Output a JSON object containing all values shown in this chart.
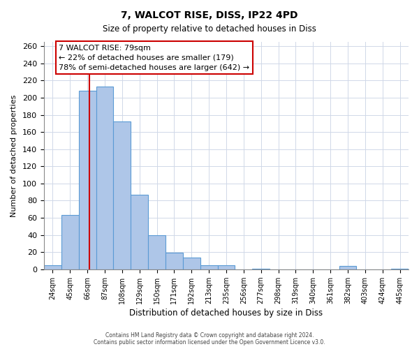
{
  "title": "7, WALCOT RISE, DISS, IP22 4PD",
  "subtitle": "Size of property relative to detached houses in Diss",
  "xlabel": "Distribution of detached houses by size in Diss",
  "ylabel": "Number of detached properties",
  "bar_labels": [
    "24sqm",
    "45sqm",
    "66sqm",
    "87sqm",
    "108sqm",
    "129sqm",
    "150sqm",
    "171sqm",
    "192sqm",
    "213sqm",
    "235sqm",
    "256sqm",
    "277sqm",
    "298sqm",
    "319sqm",
    "340sqm",
    "361sqm",
    "382sqm",
    "403sqm",
    "424sqm",
    "445sqm"
  ],
  "bar_values": [
    5,
    63,
    208,
    213,
    172,
    87,
    40,
    19,
    14,
    5,
    5,
    0,
    1,
    0,
    0,
    0,
    0,
    4,
    0,
    0,
    1
  ],
  "bar_color": "#aec6e8",
  "bar_edgecolor": "#5b9bd5",
  "bar_width": 1.0,
  "vline_color": "#cc0000",
  "annotation_line1": "7 WALCOT RISE: 79sqm",
  "annotation_line2": "← 22% of detached houses are smaller (179)",
  "annotation_line3": "78% of semi-detached houses are larger (642) →",
  "annotation_box_edgecolor": "#cc0000",
  "ylim": [
    0,
    265
  ],
  "yticks": [
    0,
    20,
    40,
    60,
    80,
    100,
    120,
    140,
    160,
    180,
    200,
    220,
    240,
    260
  ],
  "footer": "Contains HM Land Registry data © Crown copyright and database right 2024.\nContains public sector information licensed under the Open Government Licence v3.0.",
  "background_color": "#ffffff",
  "grid_color": "#d0d8e8"
}
